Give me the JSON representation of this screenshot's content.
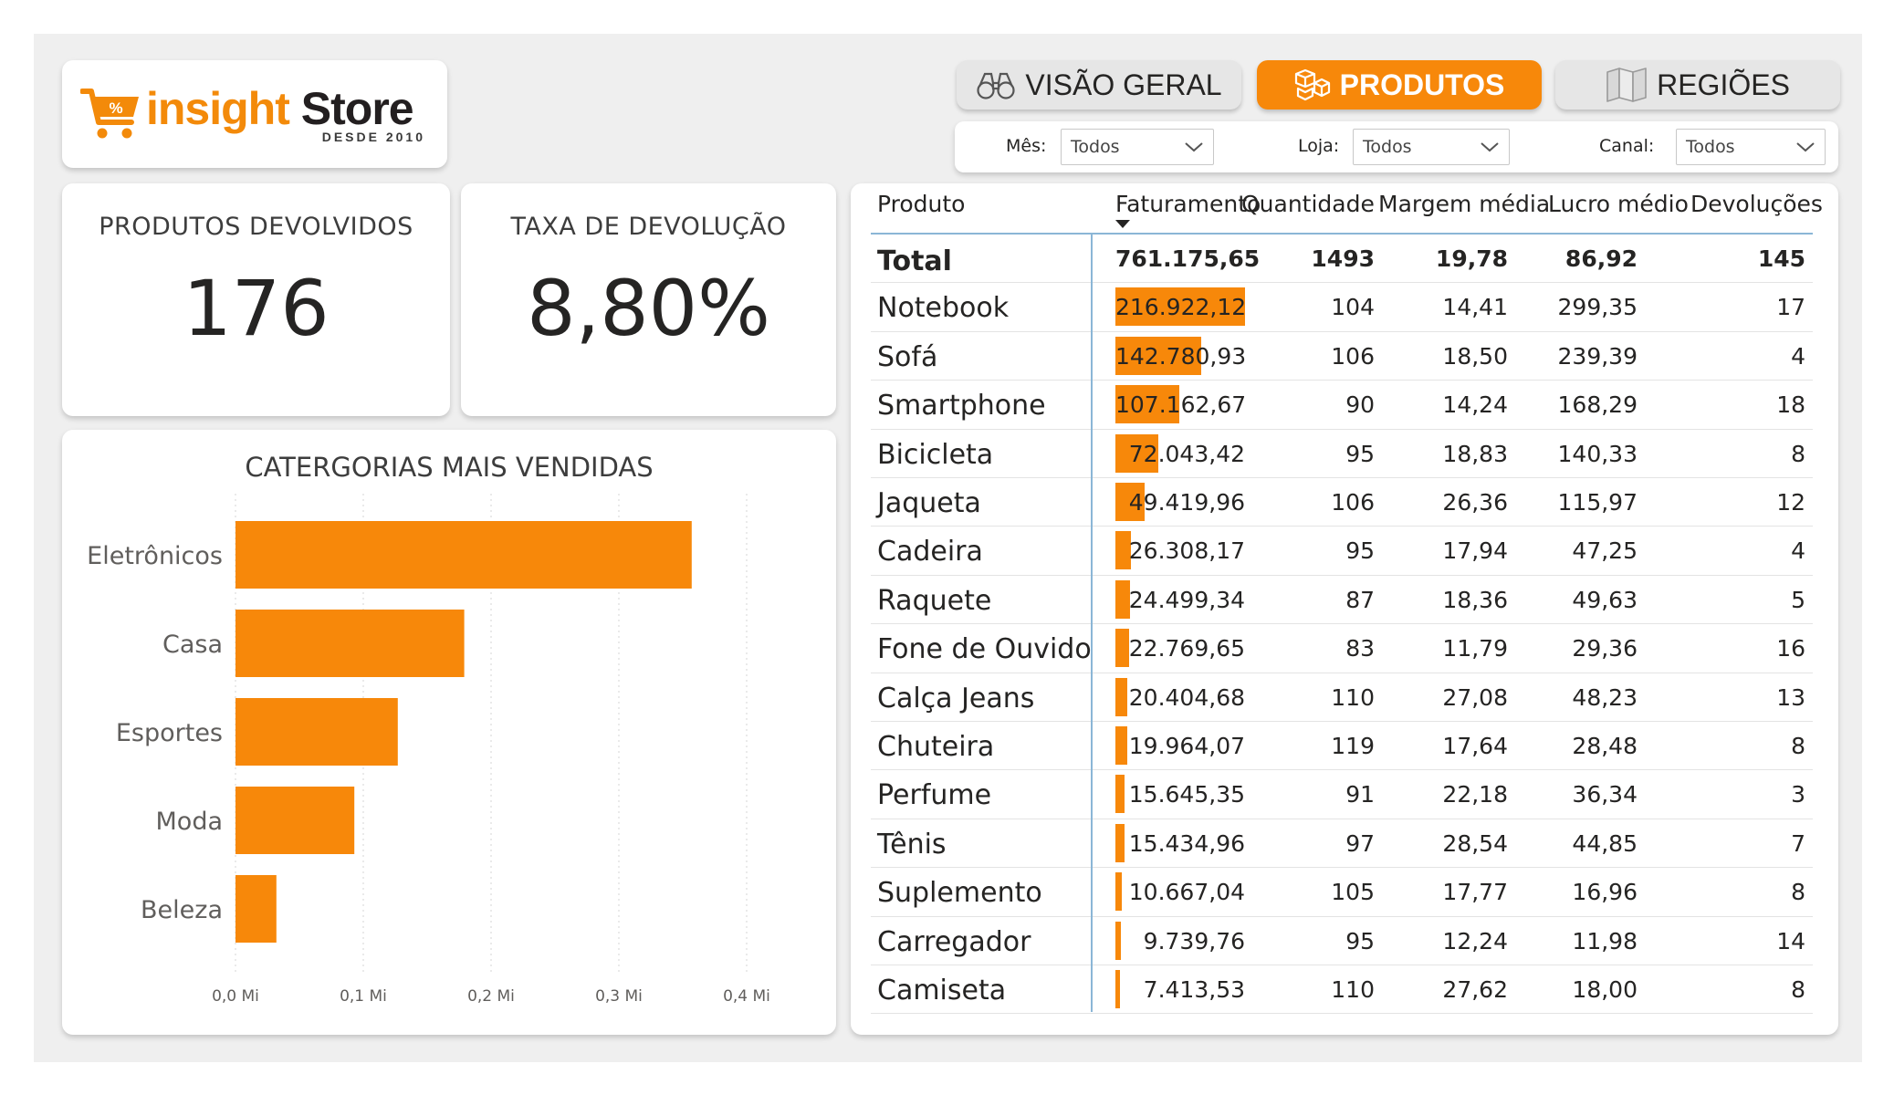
{
  "logo": {
    "brand_part1": "insight",
    "brand_part2": "Store",
    "tagline": "DESDE 2010",
    "cart_symbol": "%"
  },
  "tabs": [
    {
      "label": "VISÃO GERAL",
      "icon": "binoculars-icon",
      "active": false
    },
    {
      "label": "PRODUTOS",
      "icon": "boxes-icon",
      "active": true
    },
    {
      "label": "REGIÕES",
      "icon": "map-icon",
      "active": false
    }
  ],
  "filters": [
    {
      "label": "Mês:",
      "value": "Todos"
    },
    {
      "label": "Loja:",
      "value": "Todos"
    },
    {
      "label": "Canal:",
      "value": "Todos"
    }
  ],
  "kpis": [
    {
      "label": "PRODUTOS DEVOLVIDOS",
      "value": "176"
    },
    {
      "label": "TAXA DE DEVOLUÇÃO",
      "value": "8,80%"
    }
  ],
  "chart_data": {
    "type": "bar",
    "orientation": "horizontal",
    "title": "CATERGORIAS MAIS VENDIDAS",
    "categories": [
      "Eletrônicos",
      "Casa",
      "Esportes",
      "Moda",
      "Beleza"
    ],
    "values": [
      0.357,
      0.179,
      0.127,
      0.093,
      0.032
    ],
    "unit": "Mi",
    "xlim": [
      0,
      0.4
    ],
    "ticks": [
      "0,0 Mi",
      "0,1 Mi",
      "0,2 Mi",
      "0,3 Mi",
      "0,4 Mi"
    ],
    "grid": true,
    "color": "#f7880a"
  },
  "table": {
    "headers": [
      "Produto",
      "Faturamento",
      "Quantidade",
      "Margem média",
      "Lucro médio",
      "Devoluções"
    ],
    "sort_column": "Faturamento",
    "total": {
      "name": "Total",
      "faturamento": "761.175,65",
      "quantidade": "1493",
      "margem": "19,78",
      "lucro": "86,92",
      "devolucoes": "145"
    },
    "bar_color": "#f7880a",
    "rows": [
      {
        "name": "Notebook",
        "faturamento": "216.922,12",
        "fat_value": 216922.12,
        "quantidade": "104",
        "margem": "14,41",
        "lucro": "299,35",
        "devolucoes": "17"
      },
      {
        "name": "Sofá",
        "faturamento": "142.780,93",
        "fat_value": 142780.93,
        "quantidade": "106",
        "margem": "18,50",
        "lucro": "239,39",
        "devolucoes": "4"
      },
      {
        "name": "Smartphone",
        "faturamento": "107.162,67",
        "fat_value": 107162.67,
        "quantidade": "90",
        "margem": "14,24",
        "lucro": "168,29",
        "devolucoes": "18"
      },
      {
        "name": "Bicicleta",
        "faturamento": "72.043,42",
        "fat_value": 72043.42,
        "quantidade": "95",
        "margem": "18,83",
        "lucro": "140,33",
        "devolucoes": "8"
      },
      {
        "name": "Jaqueta",
        "faturamento": "49.419,96",
        "fat_value": 49419.96,
        "quantidade": "106",
        "margem": "26,36",
        "lucro": "115,97",
        "devolucoes": "12"
      },
      {
        "name": "Cadeira",
        "faturamento": "26.308,17",
        "fat_value": 26308.17,
        "quantidade": "95",
        "margem": "17,94",
        "lucro": "47,25",
        "devolucoes": "4"
      },
      {
        "name": "Raquete",
        "faturamento": "24.499,34",
        "fat_value": 24499.34,
        "quantidade": "87",
        "margem": "18,36",
        "lucro": "49,63",
        "devolucoes": "5"
      },
      {
        "name": "Fone de Ouvido",
        "faturamento": "22.769,65",
        "fat_value": 22769.65,
        "quantidade": "83",
        "margem": "11,79",
        "lucro": "29,36",
        "devolucoes": "16"
      },
      {
        "name": "Calça Jeans",
        "faturamento": "20.404,68",
        "fat_value": 20404.68,
        "quantidade": "110",
        "margem": "27,08",
        "lucro": "48,23",
        "devolucoes": "13"
      },
      {
        "name": "Chuteira",
        "faturamento": "19.964,07",
        "fat_value": 19964.07,
        "quantidade": "119",
        "margem": "17,64",
        "lucro": "28,48",
        "devolucoes": "8"
      },
      {
        "name": "Perfume",
        "faturamento": "15.645,35",
        "fat_value": 15645.35,
        "quantidade": "91",
        "margem": "22,18",
        "lucro": "36,34",
        "devolucoes": "3"
      },
      {
        "name": "Tênis",
        "faturamento": "15.434,96",
        "fat_value": 15434.96,
        "quantidade": "97",
        "margem": "28,54",
        "lucro": "44,85",
        "devolucoes": "7"
      },
      {
        "name": "Suplemento",
        "faturamento": "10.667,04",
        "fat_value": 10667.04,
        "quantidade": "105",
        "margem": "17,77",
        "lucro": "16,96",
        "devolucoes": "8"
      },
      {
        "name": "Carregador",
        "faturamento": "9.739,76",
        "fat_value": 9739.76,
        "quantidade": "95",
        "margem": "12,24",
        "lucro": "11,98",
        "devolucoes": "14"
      },
      {
        "name": "Camiseta",
        "faturamento": "7.413,53",
        "fat_value": 7413.53,
        "quantidade": "110",
        "margem": "27,62",
        "lucro": "18,00",
        "devolucoes": "8"
      }
    ]
  }
}
